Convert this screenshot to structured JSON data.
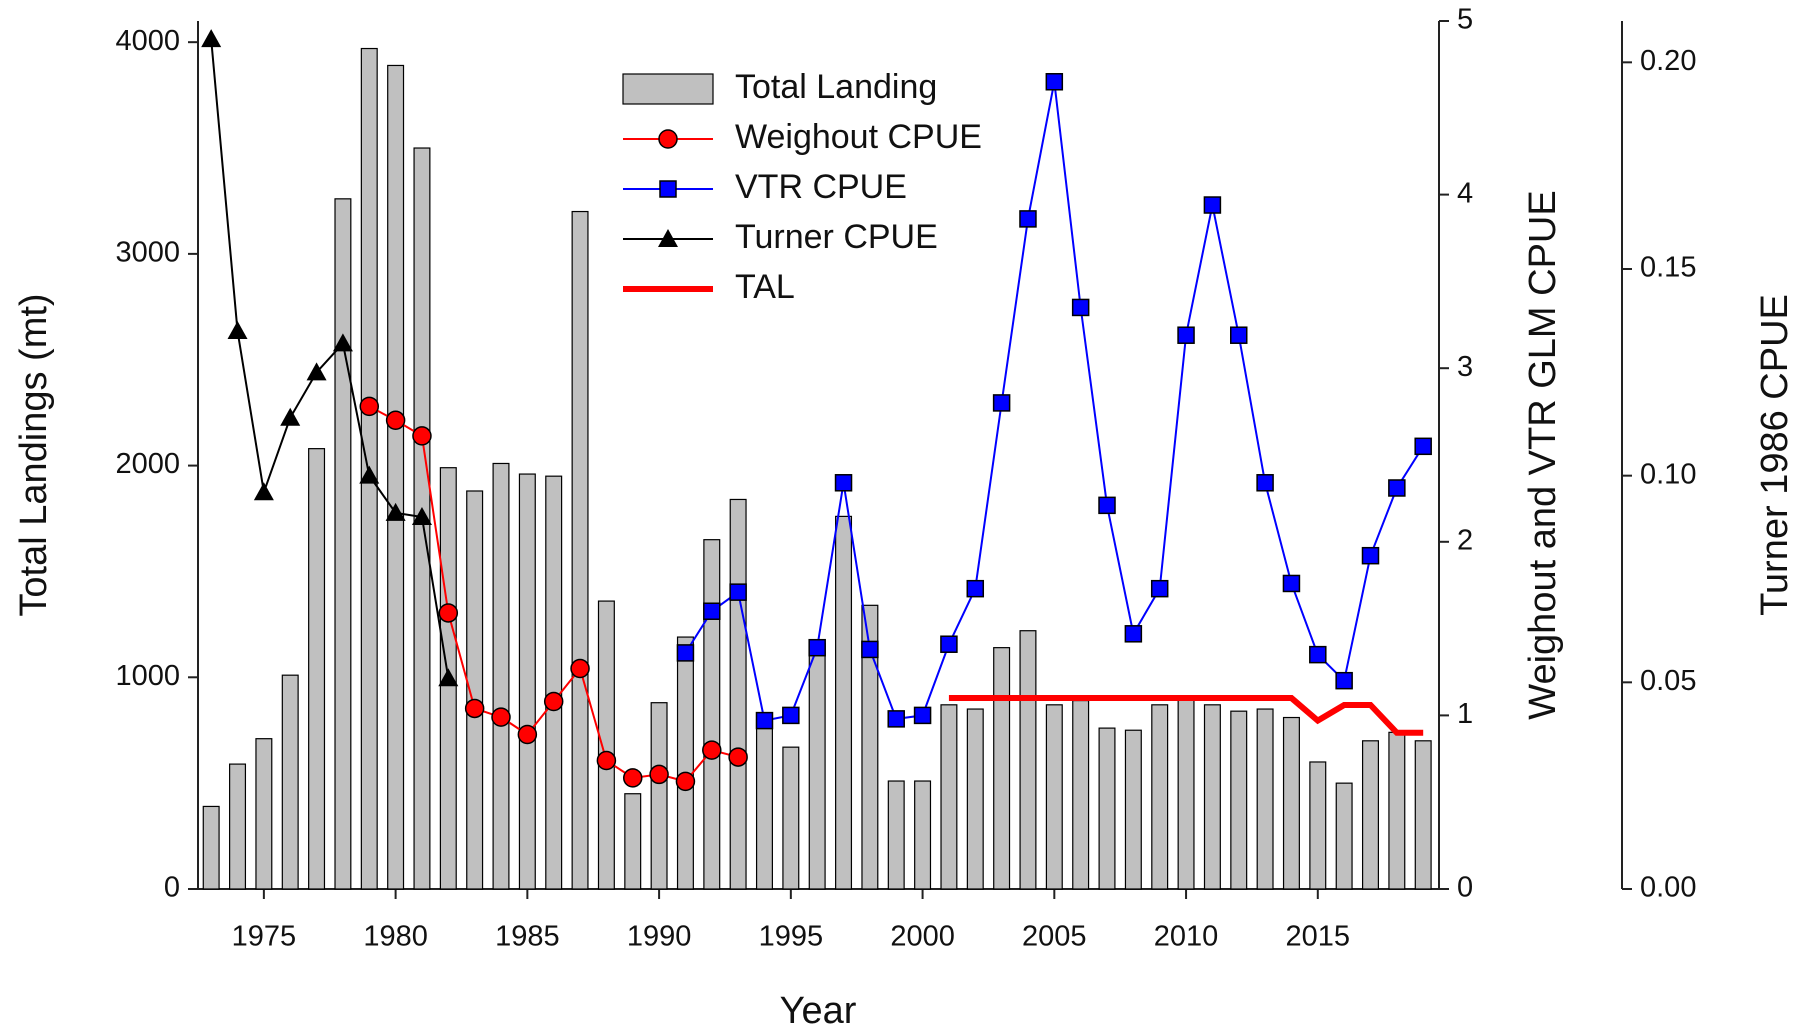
{
  "chart_data": {
    "type": "combo",
    "x_label": "Year",
    "y_label": "Total Landings (mt)",
    "y2_label": "Weighout and VTR GLM CPUE",
    "y3_label": "Turner 1986 CPUE",
    "x": [
      1973,
      1974,
      1975,
      1976,
      1977,
      1978,
      1979,
      1980,
      1981,
      1982,
      1983,
      1984,
      1985,
      1986,
      1987,
      1988,
      1989,
      1990,
      1991,
      1992,
      1993,
      1994,
      1995,
      1996,
      1997,
      1998,
      1999,
      2000,
      2001,
      2002,
      2003,
      2004,
      2005,
      2006,
      2007,
      2008,
      2009,
      2010,
      2011,
      2012,
      2013,
      2014,
      2015,
      2016,
      2017,
      2018,
      2019
    ],
    "xlim": [
      1972.5,
      2019.6
    ],
    "xticks": [
      1975,
      1980,
      1985,
      1990,
      1995,
      2000,
      2005,
      2010,
      2015
    ],
    "ylim": [
      0,
      4100
    ],
    "yticks": [
      0,
      1000,
      2000,
      3000,
      4000
    ],
    "y2lim": [
      0,
      5
    ],
    "y2ticks": [
      0,
      1,
      2,
      3,
      4,
      5
    ],
    "y3lim": [
      0,
      0.21
    ],
    "y3ticks": [
      {
        "value": 0,
        "label": "0.00"
      },
      {
        "value": 0.05,
        "label": "0.05"
      },
      {
        "value": 0.1,
        "label": "0.10"
      },
      {
        "value": 0.15,
        "label": "0.15"
      },
      {
        "value": 0.2,
        "label": "0.20"
      }
    ],
    "series": [
      {
        "name": "Total Landing",
        "type": "bar",
        "axis": "y",
        "color": "#c0c0c0",
        "values": [
          390,
          590,
          710,
          1010,
          2080,
          3260,
          3970,
          3890,
          3500,
          1990,
          1880,
          2010,
          1960,
          1950,
          3200,
          1360,
          450,
          880,
          1190,
          1650,
          1840,
          800,
          670,
          1160,
          1760,
          1340,
          510,
          510,
          870,
          850,
          1140,
          1220,
          870,
          890,
          760,
          750,
          870,
          900,
          870,
          840,
          850,
          810,
          600,
          500,
          700,
          740,
          700
        ]
      },
      {
        "name": "Weighout CPUE",
        "type": "line",
        "axis": "y2",
        "color": "#ff0000",
        "marker": "circle",
        "values": [
          null,
          null,
          null,
          null,
          null,
          null,
          2.78,
          2.7,
          2.61,
          1.59,
          1.04,
          0.99,
          0.89,
          1.08,
          1.27,
          0.74,
          0.64,
          0.66,
          0.62,
          0.8,
          0.76,
          null,
          null,
          null,
          null,
          null,
          null,
          null,
          null,
          null,
          null,
          null,
          null,
          null,
          null,
          null,
          null,
          null,
          null,
          null,
          null,
          null,
          null,
          null,
          null,
          null,
          null
        ]
      },
      {
        "name": "VTR CPUE",
        "type": "line",
        "axis": "y2",
        "color": "#0000ff",
        "marker": "square",
        "values": [
          null,
          null,
          null,
          null,
          null,
          null,
          null,
          null,
          null,
          null,
          null,
          null,
          null,
          null,
          null,
          null,
          null,
          null,
          1.36,
          1.6,
          1.71,
          0.97,
          1.0,
          1.39,
          2.34,
          1.38,
          0.98,
          1.0,
          1.41,
          1.73,
          2.8,
          3.86,
          4.65,
          3.35,
          2.21,
          1.47,
          1.73,
          3.19,
          3.94,
          3.19,
          2.34,
          1.76,
          1.35,
          1.2,
          1.92,
          2.31,
          2.55
        ]
      },
      {
        "name": "Turner CPUE",
        "type": "line",
        "axis": "y3",
        "color": "#000000",
        "marker": "triangle",
        "values": [
          0.2056,
          0.135,
          0.096,
          0.114,
          0.125,
          0.132,
          0.1,
          0.091,
          0.09,
          0.051,
          null,
          null,
          null,
          null,
          null,
          null,
          null,
          null,
          null,
          null,
          null,
          null,
          null,
          null,
          null,
          null,
          null,
          null,
          null,
          null,
          null,
          null,
          null,
          null,
          null,
          null,
          null,
          null,
          null,
          null,
          null,
          null,
          null,
          null,
          null,
          null,
          null
        ]
      },
      {
        "name": "TAL",
        "type": "line",
        "axis": "y2",
        "color": "#ff0000",
        "line_width": 6,
        "values": [
          null,
          null,
          null,
          null,
          null,
          null,
          null,
          null,
          null,
          null,
          null,
          null,
          null,
          null,
          null,
          null,
          null,
          null,
          null,
          null,
          null,
          null,
          null,
          null,
          null,
          null,
          null,
          null,
          1.1,
          1.1,
          1.1,
          1.1,
          1.1,
          1.1,
          1.1,
          1.1,
          1.1,
          1.1,
          1.1,
          1.1,
          1.1,
          1.1,
          0.97,
          1.06,
          1.06,
          0.9,
          0.9
        ]
      }
    ]
  }
}
